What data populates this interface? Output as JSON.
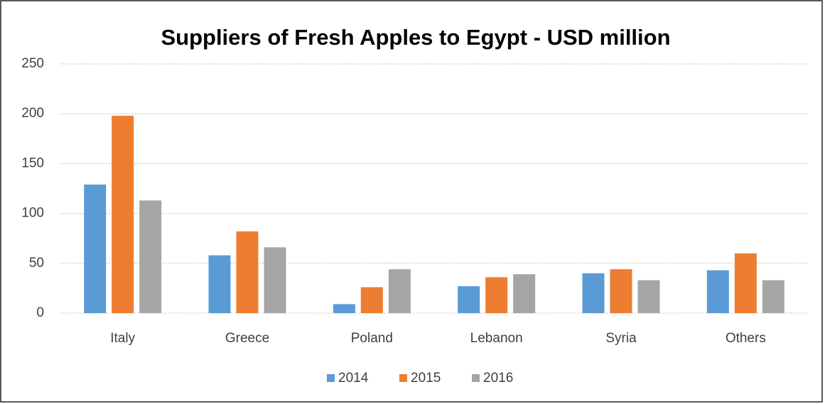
{
  "chart_data": {
    "type": "bar",
    "title": "Suppliers of Fresh Apples to Egypt - USD million",
    "categories": [
      "Italy",
      "Greece",
      "Poland",
      "Lebanon",
      "Syria",
      "Others"
    ],
    "series": [
      {
        "name": "2014",
        "color": "#5b9bd5",
        "values": [
          129,
          58,
          9,
          27,
          40,
          43
        ]
      },
      {
        "name": "2015",
        "color": "#ed7d31",
        "values": [
          198,
          82,
          26,
          36,
          44,
          60
        ]
      },
      {
        "name": "2016",
        "color": "#a5a5a5",
        "values": [
          113,
          66,
          44,
          39,
          33,
          33
        ]
      }
    ],
    "ylim": [
      0,
      250
    ],
    "yticks": [
      0,
      50,
      100,
      150,
      200,
      250
    ],
    "grid": true,
    "legend": "bottom"
  }
}
